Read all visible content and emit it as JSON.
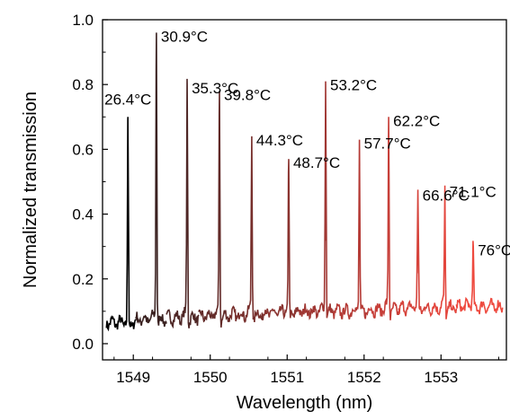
{
  "chart_data": {
    "type": "line",
    "xlabel": "Wavelength (nm)",
    "ylabel": "Normalized transmission",
    "xlim": [
      1548.6,
      1553.85
    ],
    "ylim": [
      -0.05,
      1.0
    ],
    "x_ticks": [
      1549,
      1550,
      1551,
      1552,
      1553
    ],
    "y_ticks": [
      0.0,
      0.2,
      0.4,
      0.6,
      0.8,
      1.0
    ],
    "x_tick_labels": [
      "1549",
      "1550",
      "1551",
      "1552",
      "1553"
    ],
    "y_tick_labels": [
      "0.0",
      "0.2",
      "0.4",
      "0.6",
      "0.8",
      "1.0"
    ],
    "grid": false,
    "series": [
      {
        "name": "26.4°C",
        "color": "#000000",
        "x_range": [
          1548.65,
          1549.03
        ],
        "baseline": 0.065,
        "peak_x": 1548.93,
        "peak_y": 0.7
      },
      {
        "name": "30.9°C",
        "color": "#3a2120",
        "x_range": [
          1549.03,
          1549.43
        ],
        "baseline": 0.075,
        "peak_x": 1549.3,
        "peak_y": 0.96
      },
      {
        "name": "35.3°C",
        "color": "#4e2625",
        "x_range": [
          1549.43,
          1549.85
        ],
        "baseline": 0.08,
        "peak_x": 1549.7,
        "peak_y": 0.8
      },
      {
        "name": "39.8°C",
        "color": "#622a28",
        "x_range": [
          1549.85,
          1550.25
        ],
        "baseline": 0.085,
        "peak_x": 1550.12,
        "peak_y": 0.78
      },
      {
        "name": "44.3°C",
        "color": "#772f2c",
        "x_range": [
          1550.25,
          1550.7
        ],
        "baseline": 0.09,
        "peak_x": 1550.54,
        "peak_y": 0.64
      },
      {
        "name": "48.7°C",
        "color": "#8a332f",
        "x_range": [
          1550.7,
          1551.15
        ],
        "baseline": 0.095,
        "peak_x": 1551.02,
        "peak_y": 0.57
      },
      {
        "name": "53.2°C",
        "color": "#a03733",
        "x_range": [
          1551.15,
          1551.6
        ],
        "baseline": 0.1,
        "peak_x": 1551.5,
        "peak_y": 0.81
      },
      {
        "name": "57.7°C",
        "color": "#b53b36",
        "x_range": [
          1551.6,
          1552.05
        ],
        "baseline": 0.1,
        "peak_x": 1551.94,
        "peak_y": 0.63
      },
      {
        "name": "62.2°C",
        "color": "#c73f39",
        "x_range": [
          1552.05,
          1552.45
        ],
        "baseline": 0.105,
        "peak_x": 1552.32,
        "peak_y": 0.7
      },
      {
        "name": "66.6°C",
        "color": "#d6433b",
        "x_range": [
          1552.45,
          1552.85
        ],
        "baseline": 0.11,
        "peak_x": 1552.7,
        "peak_y": 0.47
      },
      {
        "name": "71.1°C",
        "color": "#e3463d",
        "x_range": [
          1552.85,
          1553.2
        ],
        "baseline": 0.11,
        "peak_x": 1553.05,
        "peak_y": 0.48
      },
      {
        "name": "76°C",
        "color": "#ee4a3f",
        "x_range": [
          1553.2,
          1553.8
        ],
        "baseline": 0.115,
        "peak_x": 1553.42,
        "peak_y": 0.3
      }
    ]
  }
}
